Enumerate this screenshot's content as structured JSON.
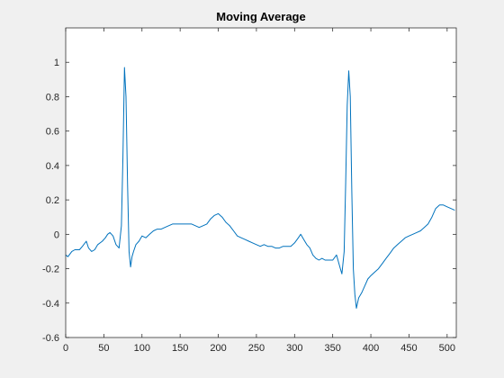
{
  "chart_data": {
    "type": "line",
    "title": "Moving Average",
    "xlabel": "",
    "ylabel": "",
    "xlim": [
      0,
      512
    ],
    "ylim": [
      -0.6,
      1.2
    ],
    "xticks": [
      0,
      50,
      100,
      150,
      200,
      250,
      300,
      350,
      400,
      450,
      500
    ],
    "yticks": [
      -0.6,
      -0.4,
      -0.2,
      0,
      0.2,
      0.4,
      0.6,
      0.8,
      1
    ],
    "grid": false,
    "line_color": "#0072bd",
    "series": [
      {
        "x": [
          0,
          3,
          8,
          12,
          18,
          22,
          27,
          30,
          34,
          38,
          42,
          48,
          52,
          55,
          58,
          62,
          66,
          70,
          73,
          75,
          77,
          79,
          81,
          83,
          85,
          87,
          89,
          92,
          96,
          100,
          105,
          110,
          115,
          120,
          125,
          130,
          135,
          140,
          145,
          150,
          155,
          160,
          165,
          170,
          175,
          180,
          185,
          190,
          195,
          200,
          205,
          210,
          215,
          220,
          225,
          230,
          235,
          240,
          245,
          250,
          255,
          260,
          265,
          270,
          275,
          280,
          285,
          290,
          295,
          300,
          305,
          308,
          312,
          316,
          320,
          324,
          328,
          332,
          336,
          340,
          345,
          350,
          355,
          360,
          362,
          365,
          367,
          369,
          371,
          373,
          375,
          377,
          379,
          381,
          384,
          388,
          392,
          396,
          400,
          405,
          410,
          415,
          420,
          425,
          430,
          435,
          440,
          445,
          450,
          455,
          460,
          465,
          470,
          475,
          480,
          485,
          490,
          495,
          500,
          505,
          510
        ],
        "y": [
          -0.12,
          -0.13,
          -0.1,
          -0.09,
          -0.09,
          -0.07,
          -0.04,
          -0.08,
          -0.1,
          -0.09,
          -0.06,
          -0.04,
          -0.02,
          0.0,
          0.01,
          -0.01,
          -0.06,
          -0.08,
          0.05,
          0.45,
          0.97,
          0.8,
          0.3,
          -0.1,
          -0.19,
          -0.13,
          -0.1,
          -0.06,
          -0.04,
          -0.01,
          -0.02,
          0.0,
          0.02,
          0.03,
          0.03,
          0.04,
          0.05,
          0.06,
          0.06,
          0.06,
          0.06,
          0.06,
          0.06,
          0.05,
          0.04,
          0.05,
          0.06,
          0.09,
          0.11,
          0.12,
          0.1,
          0.07,
          0.05,
          0.02,
          -0.01,
          -0.02,
          -0.03,
          -0.04,
          -0.05,
          -0.06,
          -0.07,
          -0.06,
          -0.07,
          -0.07,
          -0.08,
          -0.08,
          -0.07,
          -0.07,
          -0.07,
          -0.05,
          -0.02,
          0.0,
          -0.03,
          -0.06,
          -0.08,
          -0.12,
          -0.14,
          -0.15,
          -0.14,
          -0.15,
          -0.15,
          -0.15,
          -0.12,
          -0.2,
          -0.23,
          -0.1,
          0.3,
          0.75,
          0.95,
          0.8,
          0.25,
          -0.2,
          -0.35,
          -0.43,
          -0.37,
          -0.34,
          -0.3,
          -0.26,
          -0.24,
          -0.22,
          -0.2,
          -0.17,
          -0.14,
          -0.11,
          -0.08,
          -0.06,
          -0.04,
          -0.02,
          -0.01,
          0.0,
          0.01,
          0.02,
          0.04,
          0.06,
          0.1,
          0.15,
          0.17,
          0.17,
          0.16,
          0.15,
          0.14
        ]
      }
    ]
  }
}
